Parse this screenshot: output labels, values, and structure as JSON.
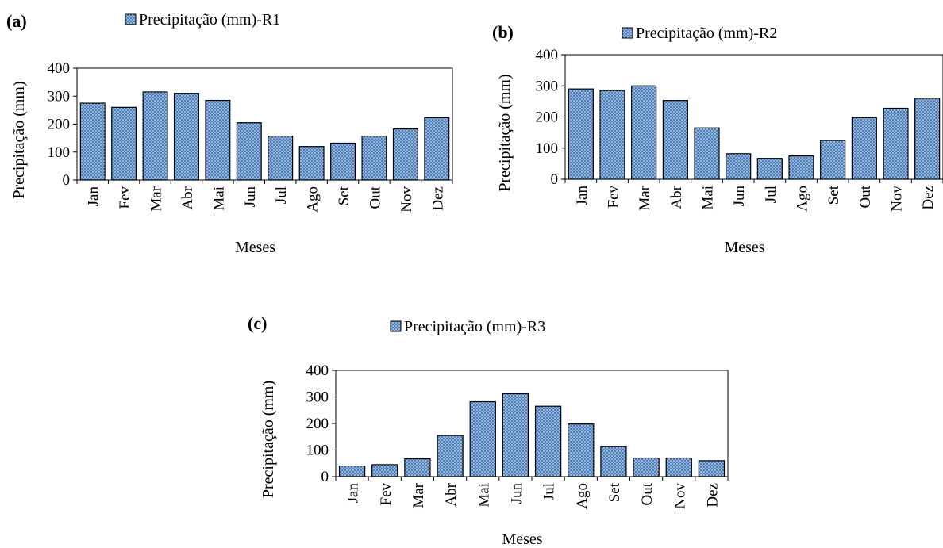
{
  "chart_data": [
    {
      "panel_label": "(a)",
      "type": "bar",
      "categories": [
        "Jan",
        "Fev",
        "Mar",
        "Abr",
        "Mai",
        "Jun",
        "Jul",
        "Ago",
        "Set",
        "Out",
        "Nov",
        "Dez"
      ],
      "series": [
        {
          "name": "Precipitação (mm)-R1",
          "values": [
            275,
            260,
            315,
            310,
            285,
            205,
            157,
            120,
            132,
            157,
            183,
            223
          ]
        }
      ],
      "xlabel": "Meses",
      "ylabel": "Precipitação (mm)",
      "ylim": [
        0,
        400
      ],
      "yticks": [
        0,
        100,
        200,
        300,
        400
      ],
      "legend_position": "top",
      "grid": false
    },
    {
      "panel_label": "(b)",
      "type": "bar",
      "categories": [
        "Jan",
        "Fev",
        "Mar",
        "Abr",
        "Mai",
        "Jun",
        "Jul",
        "Ago",
        "Set",
        "Out",
        "Nov",
        "Dez"
      ],
      "series": [
        {
          "name": "Precipitação (mm)-R2",
          "values": [
            290,
            285,
            300,
            253,
            165,
            82,
            67,
            75,
            125,
            198,
            228,
            260
          ]
        }
      ],
      "xlabel": "Meses",
      "ylabel": "Precipitação (mm)",
      "ylim": [
        0,
        400
      ],
      "yticks": [
        0,
        100,
        200,
        300,
        400
      ],
      "legend_position": "top",
      "grid": false
    },
    {
      "panel_label": "(c)",
      "type": "bar",
      "categories": [
        "Jan",
        "Fev",
        "Mar",
        "Abr",
        "Mai",
        "Jun",
        "Jul",
        "Ago",
        "Set",
        "Out",
        "Nov",
        "Dez"
      ],
      "series": [
        {
          "name": "Precipitação (mm)-R3",
          "values": [
            40,
            45,
            67,
            155,
            282,
            312,
            265,
            198,
            113,
            70,
            70,
            60
          ]
        }
      ],
      "xlabel": "Meses",
      "ylabel": "Precipitação (mm)",
      "ylim": [
        0,
        400
      ],
      "yticks": [
        0,
        100,
        200,
        300,
        400
      ],
      "legend_position": "top",
      "grid": false
    }
  ],
  "colors": {
    "bar_fill": "#4f81bd",
    "bar_dots": "#ffffff",
    "bar_stroke": "#000000",
    "axis": "#000000"
  }
}
